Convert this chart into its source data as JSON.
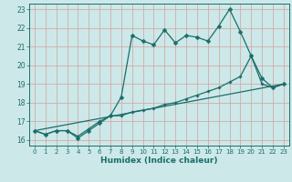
{
  "xlabel": "Humidex (Indice chaleur)",
  "bg_color": "#cce8e8",
  "line_color": "#1a6e6a",
  "grid_color": "#d4a0a0",
  "xlim": [
    -0.5,
    23.5
  ],
  "ylim": [
    15.7,
    23.3
  ],
  "xticks": [
    0,
    1,
    2,
    3,
    4,
    5,
    6,
    7,
    8,
    9,
    10,
    11,
    12,
    13,
    14,
    15,
    16,
    17,
    18,
    19,
    20,
    21,
    22,
    23
  ],
  "yticks": [
    16,
    17,
    18,
    19,
    20,
    21,
    22,
    23
  ],
  "line1_x": [
    0,
    1,
    2,
    3,
    4,
    5,
    6,
    7,
    8,
    9,
    10,
    11,
    12,
    13,
    14,
    15,
    16,
    17,
    18,
    19,
    20,
    21,
    22,
    23
  ],
  "line1_y": [
    16.5,
    16.3,
    16.5,
    16.5,
    16.1,
    16.5,
    16.9,
    17.3,
    18.3,
    21.6,
    21.3,
    21.1,
    21.9,
    21.2,
    21.6,
    21.5,
    21.3,
    22.1,
    23.0,
    21.8,
    20.5,
    19.3,
    18.8,
    19.0
  ],
  "line2_x": [
    0,
    1,
    2,
    3,
    4,
    5,
    6,
    7,
    8,
    9,
    10,
    11,
    12,
    13,
    14,
    15,
    16,
    17,
    18,
    19,
    20,
    21,
    22,
    23
  ],
  "line2_y": [
    16.5,
    16.3,
    16.5,
    16.5,
    16.2,
    16.6,
    17.0,
    17.3,
    17.3,
    17.5,
    17.6,
    17.7,
    17.9,
    18.0,
    18.2,
    18.4,
    18.6,
    18.8,
    19.1,
    19.4,
    20.5,
    19.0,
    18.8,
    19.0
  ],
  "line3_x": [
    0,
    23
  ],
  "line3_y": [
    16.5,
    19.0
  ],
  "marker_size": 2.5,
  "linewidth": 0.9
}
